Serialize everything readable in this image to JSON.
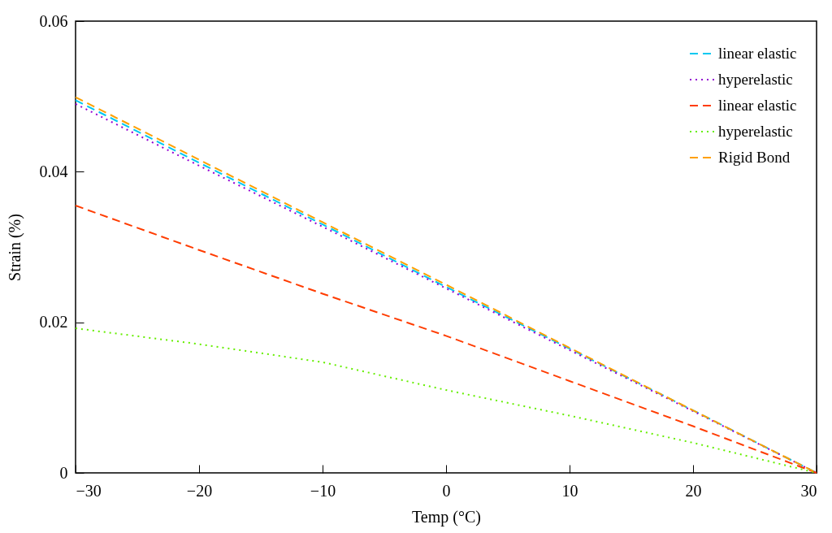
{
  "chart_data": {
    "type": "line",
    "xlabel": "Temp (°C)",
    "ylabel": "Strain (%)",
    "xlim": [
      -30,
      30
    ],
    "xticks": [
      -30,
      -20,
      -10,
      0,
      10,
      20,
      30
    ],
    "ylim": [
      0,
      0.06
    ],
    "yticks": [
      0,
      0.02,
      0.04,
      0.06
    ],
    "x": [
      -30,
      -20,
      -10,
      0,
      10,
      20,
      30
    ],
    "grid": false,
    "legend": "top right",
    "marker": "none",
    "series": [
      {
        "name": "linear elastic",
        "color": "#00c8f0",
        "line_style": "dashed",
        "values": [
          0.0495,
          0.0412,
          0.033,
          0.0247,
          0.0165,
          0.0083,
          0
        ]
      },
      {
        "name": "hyperelastic",
        "color": "#9400d3",
        "line_style": "dotted",
        "values": [
          0.049,
          0.0408,
          0.0327,
          0.0245,
          0.0163,
          0.0082,
          0
        ]
      },
      {
        "name": "linear elastic",
        "color": "#ff3c00",
        "line_style": "dashed",
        "values": [
          0.0355,
          0.0296,
          0.0238,
          0.0182,
          0.0122,
          0.0062,
          0
        ]
      },
      {
        "name": "hyperelastic",
        "color": "#66ee00",
        "line_style": "dotted",
        "values": [
          0.0192,
          0.0171,
          0.0147,
          0.011,
          0.0076,
          0.004,
          0
        ]
      },
      {
        "name": "Rigid Bond",
        "color": "#ffa000",
        "line_style": "dashed",
        "values": [
          0.0499,
          0.0416,
          0.0333,
          0.025,
          0.0166,
          0.0083,
          0
        ]
      }
    ]
  }
}
